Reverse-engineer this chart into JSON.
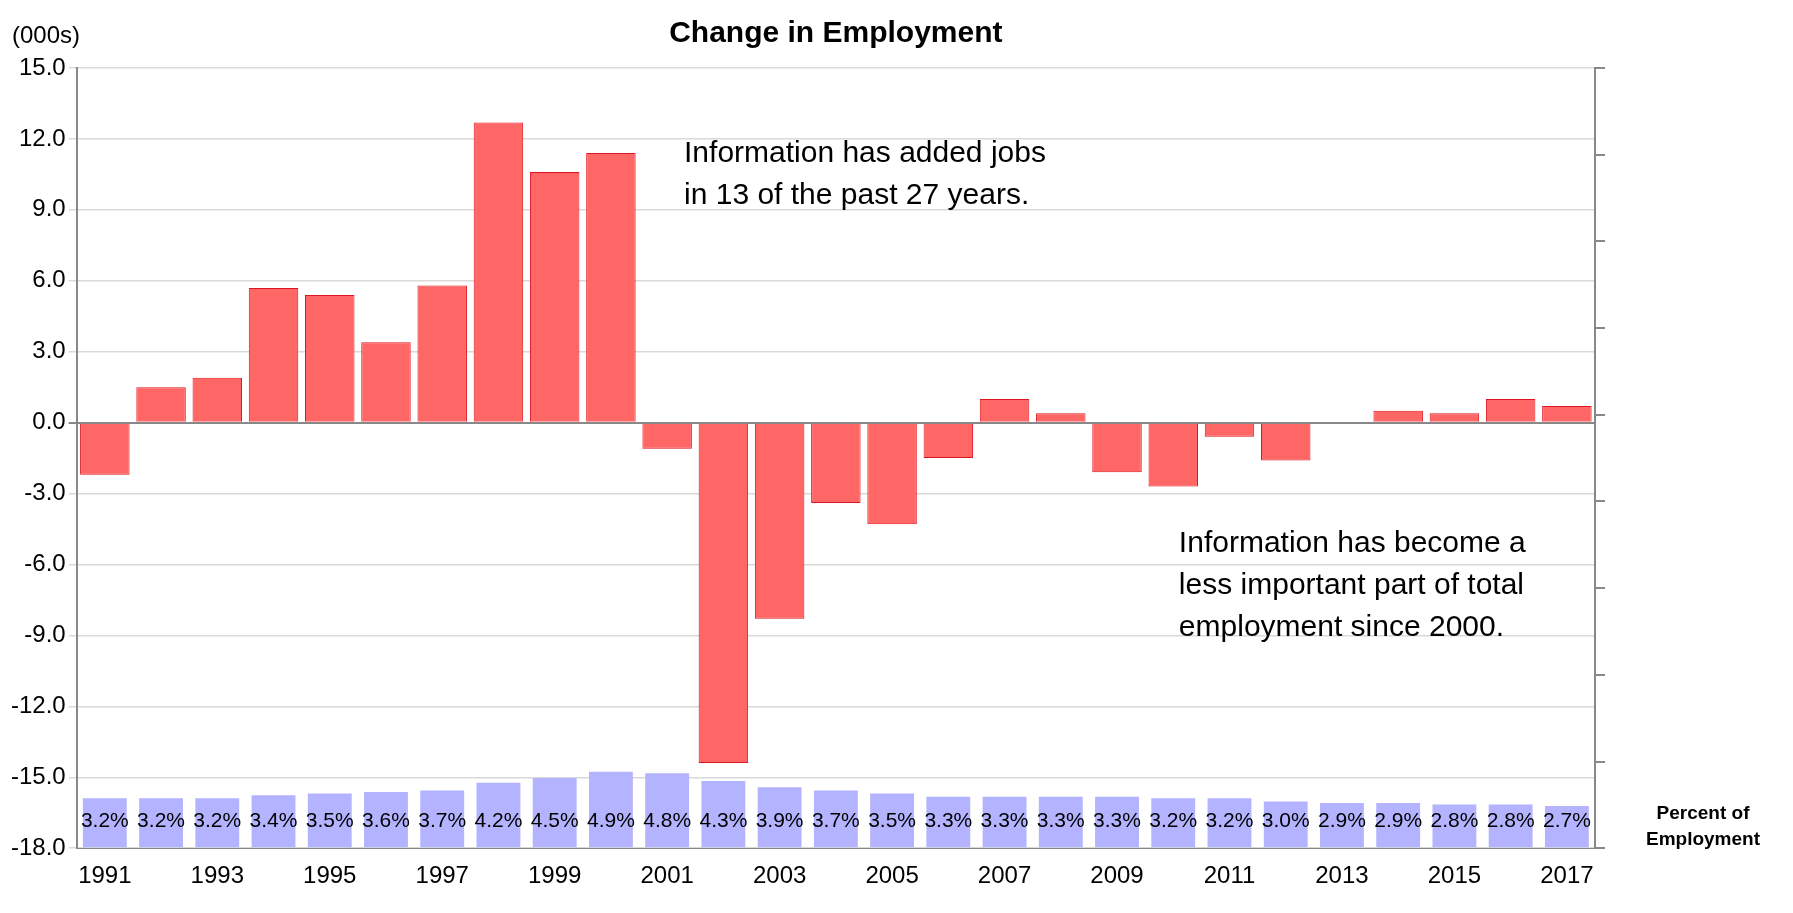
{
  "chart_data": {
    "type": "bar",
    "title": "Change in Employment",
    "ylabel": "(000s)",
    "categories": [
      "1991",
      null,
      "1993",
      null,
      "1995",
      null,
      "1997",
      null,
      "1999",
      null,
      "2001",
      null,
      "2003",
      null,
      "2005",
      null,
      "2007",
      null,
      "2009",
      null,
      "2011",
      null,
      "2013",
      null,
      "2015",
      null,
      "2017"
    ],
    "series": [
      {
        "color": "#ff6666",
        "values": [
          -2.2,
          1.5,
          1.9,
          5.7,
          5.4,
          3.4,
          5.8,
          12.7,
          10.6,
          11.4,
          -1.1,
          -14.4,
          -8.3,
          -3.4,
          -4.3,
          -1.5,
          1.0,
          0.4,
          -2.1,
          -2.7,
          -0.6,
          -1.6,
          0,
          0.5,
          0.4,
          1.0,
          0.7
        ]
      },
      {
        "name": "Percent of Employment",
        "color": "#b3b3ff",
        "axis": "y2",
        "values": [
          3.2,
          3.2,
          3.2,
          3.4,
          3.5,
          3.6,
          3.7,
          4.2,
          4.5,
          4.9,
          4.8,
          4.3,
          3.9,
          3.7,
          3.5,
          3.3,
          3.3,
          3.3,
          3.3,
          3.2,
          3.2,
          3.0,
          2.9,
          2.9,
          2.8,
          2.8,
          2.7
        ],
        "value_labels": [
          "3.2%",
          "3.2%",
          "3.2%",
          "3.4%",
          "3.5%",
          "3.6%",
          "3.7%",
          "4.2%",
          "4.5%",
          "4.9%",
          "4.8%",
          "4.3%",
          "3.9%",
          "3.7%",
          "3.5%",
          "3.3%",
          "3.3%",
          "3.3%",
          "3.3%",
          "3.2%",
          "3.2%",
          "3.0%",
          "2.9%",
          "2.9%",
          "2.8%",
          "2.8%",
          "2.7%"
        ]
      }
    ],
    "ylim": [
      -18,
      15
    ],
    "yticks": [
      {
        "value": -18,
        "label": "-18.0"
      },
      {
        "value": -15,
        "label": "-15.0"
      },
      {
        "value": -12,
        "label": "-12.0"
      },
      {
        "value": -9,
        "label": "-9.0"
      },
      {
        "value": -6,
        "label": "-6.0"
      },
      {
        "value": -3,
        "label": "-3.0"
      },
      {
        "value": 0,
        "label": "0.0"
      },
      {
        "value": 3,
        "label": "3.0"
      },
      {
        "value": 6,
        "label": "6.0"
      },
      {
        "value": 9,
        "label": "9.0"
      },
      {
        "value": 12,
        "label": "12.0"
      },
      {
        "value": 15,
        "label": "15.0"
      }
    ],
    "grid": "y",
    "legend": false,
    "tick_labels": [
      "x",
      "y"
    ],
    "annotations": [
      "Information has added jobs in 13 of the past 27 years.",
      "Information has become a less important part of total employment since 2000."
    ]
  }
}
